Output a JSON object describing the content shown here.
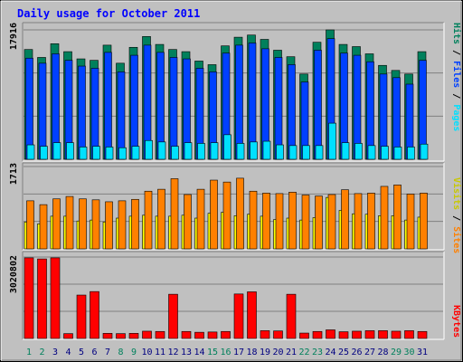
{
  "title": "Daily usage for October 2011",
  "colors": {
    "background": "#c0c0c0",
    "title": "#0000ff",
    "hits": "#00805c",
    "files": "#0040ff",
    "pages": "#00e0ff",
    "visits": "#ffff00",
    "sites": "#ff8000",
    "kbytes": "#ff0000",
    "weekday_label": "#000080",
    "weekend_label": "#00805c"
  },
  "chart_data": [
    {
      "type": "bar",
      "y_max_label": "17916",
      "legend_right": [
        {
          "text": "Hits",
          "color": "#00805c"
        },
        {
          "text": " / ",
          "color": "#000000"
        },
        {
          "text": "Files",
          "color": "#0040ff"
        },
        {
          "text": " / ",
          "color": "#000000"
        },
        {
          "text": "Pages",
          "color": "#00e0ff"
        }
      ],
      "categories": [
        "1",
        "2",
        "3",
        "4",
        "5",
        "6",
        "7",
        "8",
        "9",
        "10",
        "11",
        "12",
        "13",
        "14",
        "15",
        "16",
        "17",
        "18",
        "19",
        "20",
        "21",
        "22",
        "23",
        "24",
        "25",
        "26",
        "27",
        "28",
        "29",
        "30",
        "31"
      ],
      "series": [
        {
          "name": "Hits",
          "values": [
            15200,
            14100,
            16000,
            14900,
            13900,
            13700,
            15800,
            13300,
            15500,
            17000,
            15900,
            15200,
            14900,
            13600,
            13100,
            15700,
            16900,
            17200,
            16600,
            15100,
            14200,
            11800,
            16200,
            17916,
            15900,
            15600,
            14600,
            13000,
            12300,
            11800,
            14900
          ]
        },
        {
          "name": "Files",
          "values": [
            14000,
            13300,
            14600,
            13700,
            12900,
            12600,
            14800,
            12100,
            14400,
            15800,
            14800,
            14100,
            13900,
            12600,
            12100,
            14700,
            15800,
            16100,
            15300,
            14100,
            13100,
            10700,
            15100,
            16700,
            14700,
            14400,
            13500,
            11800,
            11300,
            10400,
            13700
          ]
        },
        {
          "name": "Pages",
          "values": [
            2000,
            1800,
            2300,
            2300,
            1700,
            1800,
            1700,
            1600,
            1800,
            2600,
            2400,
            1800,
            2300,
            2200,
            2300,
            3400,
            2200,
            2400,
            2500,
            2000,
            1900,
            1900,
            1900,
            5000,
            2300,
            2200,
            1900,
            1800,
            1700,
            1700,
            2100
          ]
        }
      ]
    },
    {
      "type": "bar",
      "y_max_label": "1713",
      "legend_right": [
        {
          "text": "Visits",
          "color": "#c8c800"
        },
        {
          "text": " / ",
          "color": "#000000"
        },
        {
          "text": "Sites",
          "color": "#ff8000"
        }
      ],
      "categories": [
        "1",
        "2",
        "3",
        "4",
        "5",
        "6",
        "7",
        "8",
        "9",
        "10",
        "11",
        "12",
        "13",
        "14",
        "15",
        "16",
        "17",
        "18",
        "19",
        "20",
        "21",
        "22",
        "23",
        "24",
        "25",
        "26",
        "27",
        "28",
        "29",
        "30",
        "31"
      ],
      "series": [
        {
          "name": "Visits",
          "values": [
            560,
            520,
            680,
            680,
            580,
            600,
            560,
            640,
            680,
            700,
            680,
            680,
            700,
            640,
            740,
            760,
            690,
            720,
            680,
            610,
            640,
            600,
            650,
            1070,
            800,
            730,
            720,
            690,
            690,
            600,
            660
          ]
        },
        {
          "name": "Sites",
          "values": [
            1000,
            920,
            1040,
            1090,
            1040,
            1020,
            980,
            1000,
            1030,
            1200,
            1240,
            1460,
            1130,
            1240,
            1430,
            1390,
            1470,
            1200,
            1160,
            1150,
            1180,
            1120,
            1100,
            1130,
            1230,
            1150,
            1160,
            1300,
            1330,
            1140,
            1160
          ]
        }
      ]
    },
    {
      "type": "bar",
      "y_max_label": "3020802",
      "legend_right": [
        {
          "text": "KBytes",
          "color": "#ff0000"
        }
      ],
      "categories": [
        "1",
        "2",
        "3",
        "4",
        "5",
        "6",
        "7",
        "8",
        "9",
        "10",
        "11",
        "12",
        "13",
        "14",
        "15",
        "16",
        "17",
        "18",
        "19",
        "20",
        "21",
        "22",
        "23",
        "24",
        "25",
        "26",
        "27",
        "28",
        "29",
        "30",
        "31"
      ],
      "series": [
        {
          "name": "KBytes",
          "values": [
            2990000,
            2950000,
            2990000,
            180000,
            1610000,
            1740000,
            190000,
            180000,
            190000,
            270000,
            260000,
            1640000,
            260000,
            230000,
            240000,
            260000,
            1650000,
            1730000,
            290000,
            280000,
            1640000,
            200000,
            260000,
            320000,
            250000,
            270000,
            290000,
            290000,
            270000,
            290000,
            260000
          ]
        }
      ]
    }
  ],
  "x_axis": {
    "labels": [
      "1",
      "2",
      "3",
      "4",
      "5",
      "6",
      "7",
      "8",
      "9",
      "10",
      "11",
      "12",
      "13",
      "14",
      "15",
      "16",
      "17",
      "18",
      "19",
      "20",
      "21",
      "22",
      "23",
      "24",
      "25",
      "26",
      "27",
      "28",
      "29",
      "30",
      "31"
    ],
    "weekend_days": [
      1,
      2,
      8,
      9,
      15,
      16,
      22,
      23,
      29,
      30
    ]
  }
}
